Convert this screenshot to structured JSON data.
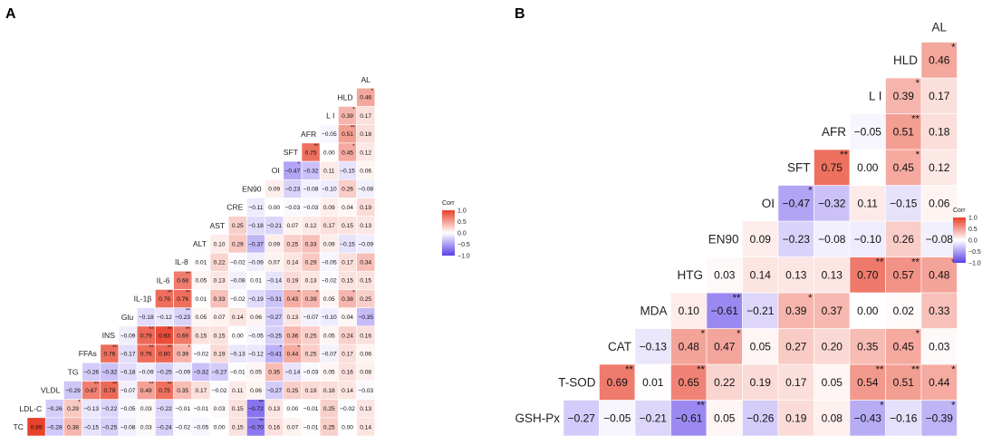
{
  "panels": [
    {
      "id": "A",
      "label": "A",
      "variables": [
        "TC",
        "LDL-C",
        "VLDL",
        "TG",
        "FFAs",
        "INS",
        "Glu",
        "IL-1β",
        "IL-6",
        "IL-8",
        "ALT",
        "AST",
        "CRE",
        "EN90",
        "OI",
        "SFT",
        "AFR",
        "L I",
        "HLD",
        "AL"
      ],
      "sig_cells": [
        [
          1,
          0,
          "*"
        ],
        [
          4,
          2,
          "**"
        ],
        [
          4,
          3,
          "**"
        ],
        [
          5,
          3,
          "**"
        ],
        [
          5,
          4,
          "*"
        ],
        [
          7,
          4,
          "**"
        ],
        [
          7,
          5,
          "**"
        ],
        [
          8,
          5,
          "**"
        ],
        [
          8,
          6,
          "**"
        ],
        [
          9,
          6,
          "**"
        ],
        [
          9,
          7,
          "**"
        ],
        [
          10,
          7,
          "**"
        ],
        [
          10,
          8,
          "**"
        ],
        [
          8,
          7,
          "**"
        ],
        [
          9,
          8,
          "**"
        ],
        [
          10,
          9,
          "**"
        ],
        [
          12,
          6,
          "**"
        ],
        [
          13,
          6,
          "**"
        ],
        [
          14,
          4,
          "*"
        ],
        [
          14,
          5,
          "*"
        ],
        [
          14,
          11,
          "*"
        ],
        [
          15,
          11,
          "*"
        ],
        [
          16,
          11,
          "*"
        ],
        [
          17,
          11,
          "*"
        ],
        [
          18,
          11,
          "*"
        ],
        [
          14,
          3,
          "*"
        ],
        [
          15,
          3,
          "*"
        ],
        [
          17,
          4,
          "*"
        ],
        [
          18,
          1,
          "**"
        ],
        [
          18,
          0,
          "**"
        ],
        [
          15,
          14,
          "*"
        ],
        [
          16,
          15,
          "**"
        ],
        [
          18,
          16,
          "*"
        ],
        [
          18,
          17,
          "**"
        ],
        [
          18,
          18,
          "*"
        ],
        [
          19,
          18,
          "*"
        ]
      ],
      "rows": [
        {
          "label": "TC",
          "values": [
            0.99,
            -0.28,
            0.38,
            -0.15,
            -0.25,
            -0.08,
            0.03,
            -0.24,
            -0.02,
            -0.05,
            0.0,
            0.15,
            -0.7,
            0.16,
            0.07,
            -0.01,
            0.25,
            0.0,
            0.14
          ]
        },
        {
          "label": "LDL-C",
          "values": [
            -0.26,
            0.29,
            -0.13,
            -0.22,
            -0.05,
            0.03,
            -0.22,
            -0.01,
            -0.01,
            0.03,
            0.15,
            -0.72,
            0.13,
            0.0,
            -0.01,
            0.25,
            -0.02,
            0.13
          ]
        },
        {
          "label": "VLDL",
          "values": [
            -0.29,
            0.67,
            0.79,
            -0.07,
            0.49,
            0.75,
            0.35,
            0.17,
            -0.02,
            0.11,
            0.06,
            -0.27,
            0.25,
            0.19,
            0.18,
            0.14,
            -0.03
          ]
        },
        {
          "label": "TG",
          "values": [
            -0.26,
            -0.32,
            -0.18,
            -0.09,
            -0.25,
            -0.09,
            -0.32,
            -0.27,
            -0.01,
            0.05,
            0.35,
            -0.14,
            -0.03,
            0.05,
            0.16,
            0.08
          ]
        },
        {
          "label": "FFAs",
          "values": [
            0.76,
            -0.17,
            0.76,
            0.8,
            0.39,
            -0.02,
            0.19,
            -0.13,
            -0.12,
            -0.41,
            0.44,
            0.25,
            -0.07,
            0.17,
            0.06
          ]
        },
        {
          "label": "INS",
          "values": [
            -0.09,
            0.79,
            0.93,
            0.69,
            0.15,
            0.15,
            0.0,
            -0.05,
            -0.25,
            0.36,
            0.25,
            0.05,
            0.24,
            0.16
          ]
        },
        {
          "label": "Glu",
          "values": [
            -0.18,
            -0.12,
            -0.23,
            0.05,
            0.07,
            0.14,
            0.06,
            -0.27,
            0.13,
            -0.07,
            -0.1,
            0.04,
            -0.35
          ]
        },
        {
          "label": "IL-1β",
          "values": [
            0.76,
            0.76,
            0.01,
            0.33,
            -0.02,
            -0.19,
            -0.31,
            0.43,
            0.39,
            0.05,
            0.38,
            0.25
          ]
        },
        {
          "label": "IL-6",
          "values": [
            0.68,
            0.05,
            0.13,
            -0.08,
            0.01,
            -0.14,
            0.19,
            0.13,
            -0.02,
            0.15,
            0.15
          ]
        },
        {
          "label": "IL-8",
          "values": [
            0.01,
            0.22,
            -0.02,
            -0.09,
            0.07,
            0.14,
            0.29,
            -0.05,
            0.17,
            0.34
          ]
        },
        {
          "label": "ALT",
          "values": [
            0.1,
            0.29,
            -0.37,
            0.09,
            0.25,
            0.33,
            0.09,
            -0.15,
            -0.09
          ]
        },
        {
          "label": "AST",
          "values": [
            0.25,
            -0.18,
            -0.21,
            0.07,
            0.12,
            0.17,
            0.15,
            0.13
          ]
        },
        {
          "label": "CRE",
          "values": [
            -0.11,
            0.0,
            -0.03,
            -0.03,
            0.09,
            0.04,
            0.19
          ]
        },
        {
          "label": "EN90",
          "values": [
            0.09,
            -0.23,
            -0.08,
            -0.1,
            0.26,
            -0.08
          ]
        },
        {
          "label": "OI",
          "values": [
            -0.47,
            -0.32,
            0.11,
            -0.15,
            0.06
          ]
        },
        {
          "label": "SFT",
          "values": [
            0.75,
            0.0,
            0.45,
            0.12
          ]
        },
        {
          "label": "AFR",
          "values": [
            -0.05,
            0.51,
            0.18
          ]
        },
        {
          "label": "L I",
          "values": [
            0.39,
            0.17
          ]
        },
        {
          "label": "HLD",
          "values": [
            0.46
          ]
        }
      ],
      "sig_a": {
        "0-0": "",
        "1-1": "*",
        "2-1": "**",
        "2-2": "**",
        "4-0": "**",
        "4-2": "**",
        "4-3": "**",
        "4-4": "*",
        "5-1": "**",
        "5-2": "**",
        "5-3": "**",
        "7-0": "**",
        "7-1": "**",
        "8-0": "**",
        "2-4": "**",
        "2-5": "**",
        "4-9": "*",
        "4-10": "*",
        "5-9": "",
        "7-7": "*",
        "7-8": "*",
        "7-10": "*",
        "14-0": "*",
        "15-0": "**",
        "16-1": "**",
        "16-0": "",
        "17-0": "*",
        "18-0": "*",
        "15-2": "*",
        "0-12": "**",
        "1-11": "**",
        "10-2": "",
        "9-0": "",
        "8-1": "",
        "6-2": "**"
      }
    },
    {
      "id": "B",
      "label": "B",
      "variables": [
        "GSH-Px",
        "T-SOD",
        "CAT",
        "MDA",
        "HTG",
        "EN90",
        "OI",
        "SFT",
        "AFR",
        "L I",
        "HLD",
        "AL"
      ],
      "rows": [
        {
          "label": "GSH-Px",
          "values": [
            -0.27,
            -0.05,
            -0.21,
            -0.61,
            0.05,
            -0.26,
            0.19,
            0.08,
            -0.43,
            -0.16,
            -0.39
          ]
        },
        {
          "label": "T-SOD",
          "values": [
            0.69,
            0.01,
            0.65,
            0.22,
            0.19,
            0.17,
            0.05,
            0.54,
            0.51,
            0.44
          ]
        },
        {
          "label": "CAT",
          "values": [
            -0.13,
            0.48,
            0.47,
            0.05,
            0.27,
            0.2,
            0.35,
            0.45,
            0.03
          ]
        },
        {
          "label": "MDA",
          "values": [
            0.1,
            -0.61,
            -0.21,
            0.39,
            0.37,
            0.0,
            0.02,
            0.33
          ]
        },
        {
          "label": "HTG",
          "values": [
            0.03,
            0.14,
            0.13,
            0.13,
            0.7,
            0.57,
            0.48
          ]
        },
        {
          "label": "EN90",
          "values": [
            0.09,
            -0.23,
            -0.08,
            -0.1,
            0.26,
            -0.08
          ]
        },
        {
          "label": "OI",
          "values": [
            -0.47,
            -0.32,
            0.11,
            -0.15,
            0.06
          ]
        },
        {
          "label": "SFT",
          "values": [
            0.75,
            0.0,
            0.45,
            0.12
          ]
        },
        {
          "label": "AFR",
          "values": [
            -0.05,
            0.51,
            0.18
          ]
        },
        {
          "label": "L I",
          "values": [
            0.39,
            0.17
          ]
        },
        {
          "label": "HLD",
          "values": [
            0.46
          ]
        }
      ],
      "sig_b": {
        "0-3": "**",
        "0-8": "*",
        "0-10": "*",
        "1-0": "**",
        "1-2": "**",
        "1-7": "**",
        "1-8": "**",
        "1-9": "*",
        "2-1": "*",
        "2-2": "*",
        "2-7": "*",
        "3-1": "**",
        "3-3": "*",
        "4-4": "**",
        "4-5": "**",
        "4-6": "*",
        "6-0": "*",
        "7-0": "**",
        "7-2": "*",
        "8-1": "**",
        "9-0": "*",
        "10-0": "*"
      }
    }
  ],
  "legend": {
    "title": "Corr",
    "ticks": [
      "1.0",
      "0.5",
      "0.0",
      "−0.5",
      "−1.0"
    ],
    "tick_values": [
      1.0,
      0.5,
      0.0,
      -0.5,
      -1.0
    ]
  },
  "colors": {
    "positive": "#e8402a",
    "negative": "#5b3ee8",
    "neutral": "#ffffff"
  },
  "chart_data": [
    {
      "type": "heatmap",
      "title": "A",
      "xlabel": "",
      "ylabel": "",
      "color_range": [
        -1,
        1
      ],
      "legend_title": "Corr"
    },
    {
      "type": "heatmap",
      "title": "B",
      "xlabel": "",
      "ylabel": "",
      "color_range": [
        -1,
        1
      ],
      "legend_title": "Corr"
    }
  ]
}
